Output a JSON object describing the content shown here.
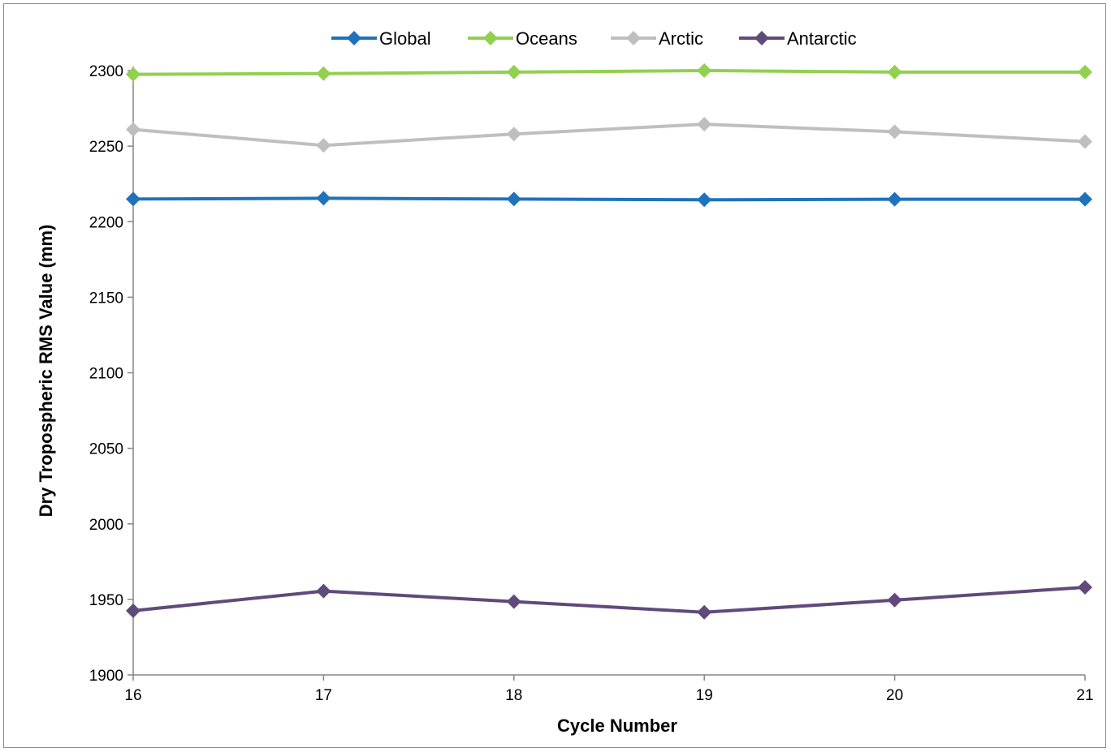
{
  "chart_data": {
    "type": "line",
    "title": "",
    "xlabel": "Cycle Number",
    "ylabel": "Dry Tropospheric RMS Value (mm)",
    "x": [
      16,
      17,
      18,
      19,
      20,
      21
    ],
    "ylim": [
      1900,
      2300
    ],
    "yticks": [
      1900,
      1950,
      2000,
      2050,
      2100,
      2150,
      2200,
      2250,
      2300
    ],
    "grid": false,
    "legend_position": "top",
    "series": [
      {
        "name": "Global",
        "color": "#1f72bc",
        "values": [
          2215,
          2215.5,
          2215,
          2214.5,
          2214.8,
          2214.8
        ]
      },
      {
        "name": "Oceans",
        "color": "#92d050",
        "values": [
          2297.5,
          2298,
          2299,
          2300,
          2299,
          2299
        ]
      },
      {
        "name": "Arctic",
        "color": "#bfbfbf",
        "values": [
          2261,
          2250.5,
          2258,
          2264.5,
          2259.5,
          2253
        ]
      },
      {
        "name": "Antarctic",
        "color": "#604a7b",
        "values": [
          1942.5,
          1955.5,
          1948.5,
          1941.5,
          1949.5,
          1958
        ]
      }
    ]
  }
}
